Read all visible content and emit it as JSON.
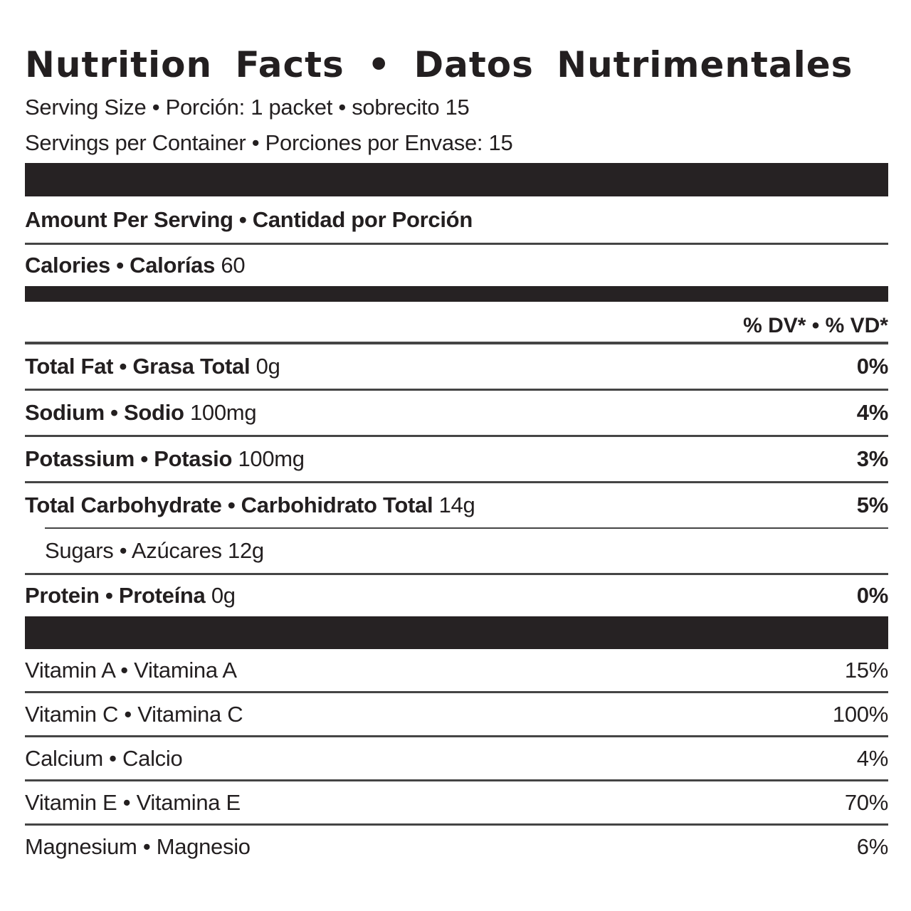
{
  "title": "Nutrition Facts • Datos Nutrimentales",
  "serving": {
    "size_line": "Serving Size • Porción: 1 packet • sobrecito 15",
    "container_line": "Servings per Container • Porciones por Envase: 15"
  },
  "amount_header": "Amount Per Serving • Cantidad por Porción",
  "calories": {
    "label": "Calories • Calorías",
    "value": "60"
  },
  "dv_header": "% DV* • % VD*",
  "nutrients": [
    {
      "name": "Total Fat • Grasa Total",
      "amount": "0g",
      "dv": "0%"
    },
    {
      "name": "Sodium • Sodio",
      "amount": "100mg",
      "dv": "4%"
    },
    {
      "name": "Potassium • Potasio",
      "amount": "100mg",
      "dv": "3%"
    },
    {
      "name": "Total Carbohydrate • Carbohidrato Total",
      "amount": "14g",
      "dv": "5%"
    },
    {
      "name": "Sugars • Azúcares",
      "amount": "12g",
      "dv": ""
    },
    {
      "name": "Protein • Proteína",
      "amount": "0g",
      "dv": "0%"
    }
  ],
  "vitamins": [
    {
      "name": "Vitamin A • Vitamina A",
      "dv": "15%"
    },
    {
      "name": "Vitamin C • Vitamina C",
      "dv": "100%"
    },
    {
      "name": "Calcium • Calcio",
      "dv": "4%"
    },
    {
      "name": "Vitamin E • Vitamina E",
      "dv": "70%"
    },
    {
      "name": "Magnesium • Magnesio",
      "dv": "6%"
    }
  ],
  "colors": {
    "text": "#231f20",
    "bar": "#262223",
    "rule": "#454545"
  }
}
